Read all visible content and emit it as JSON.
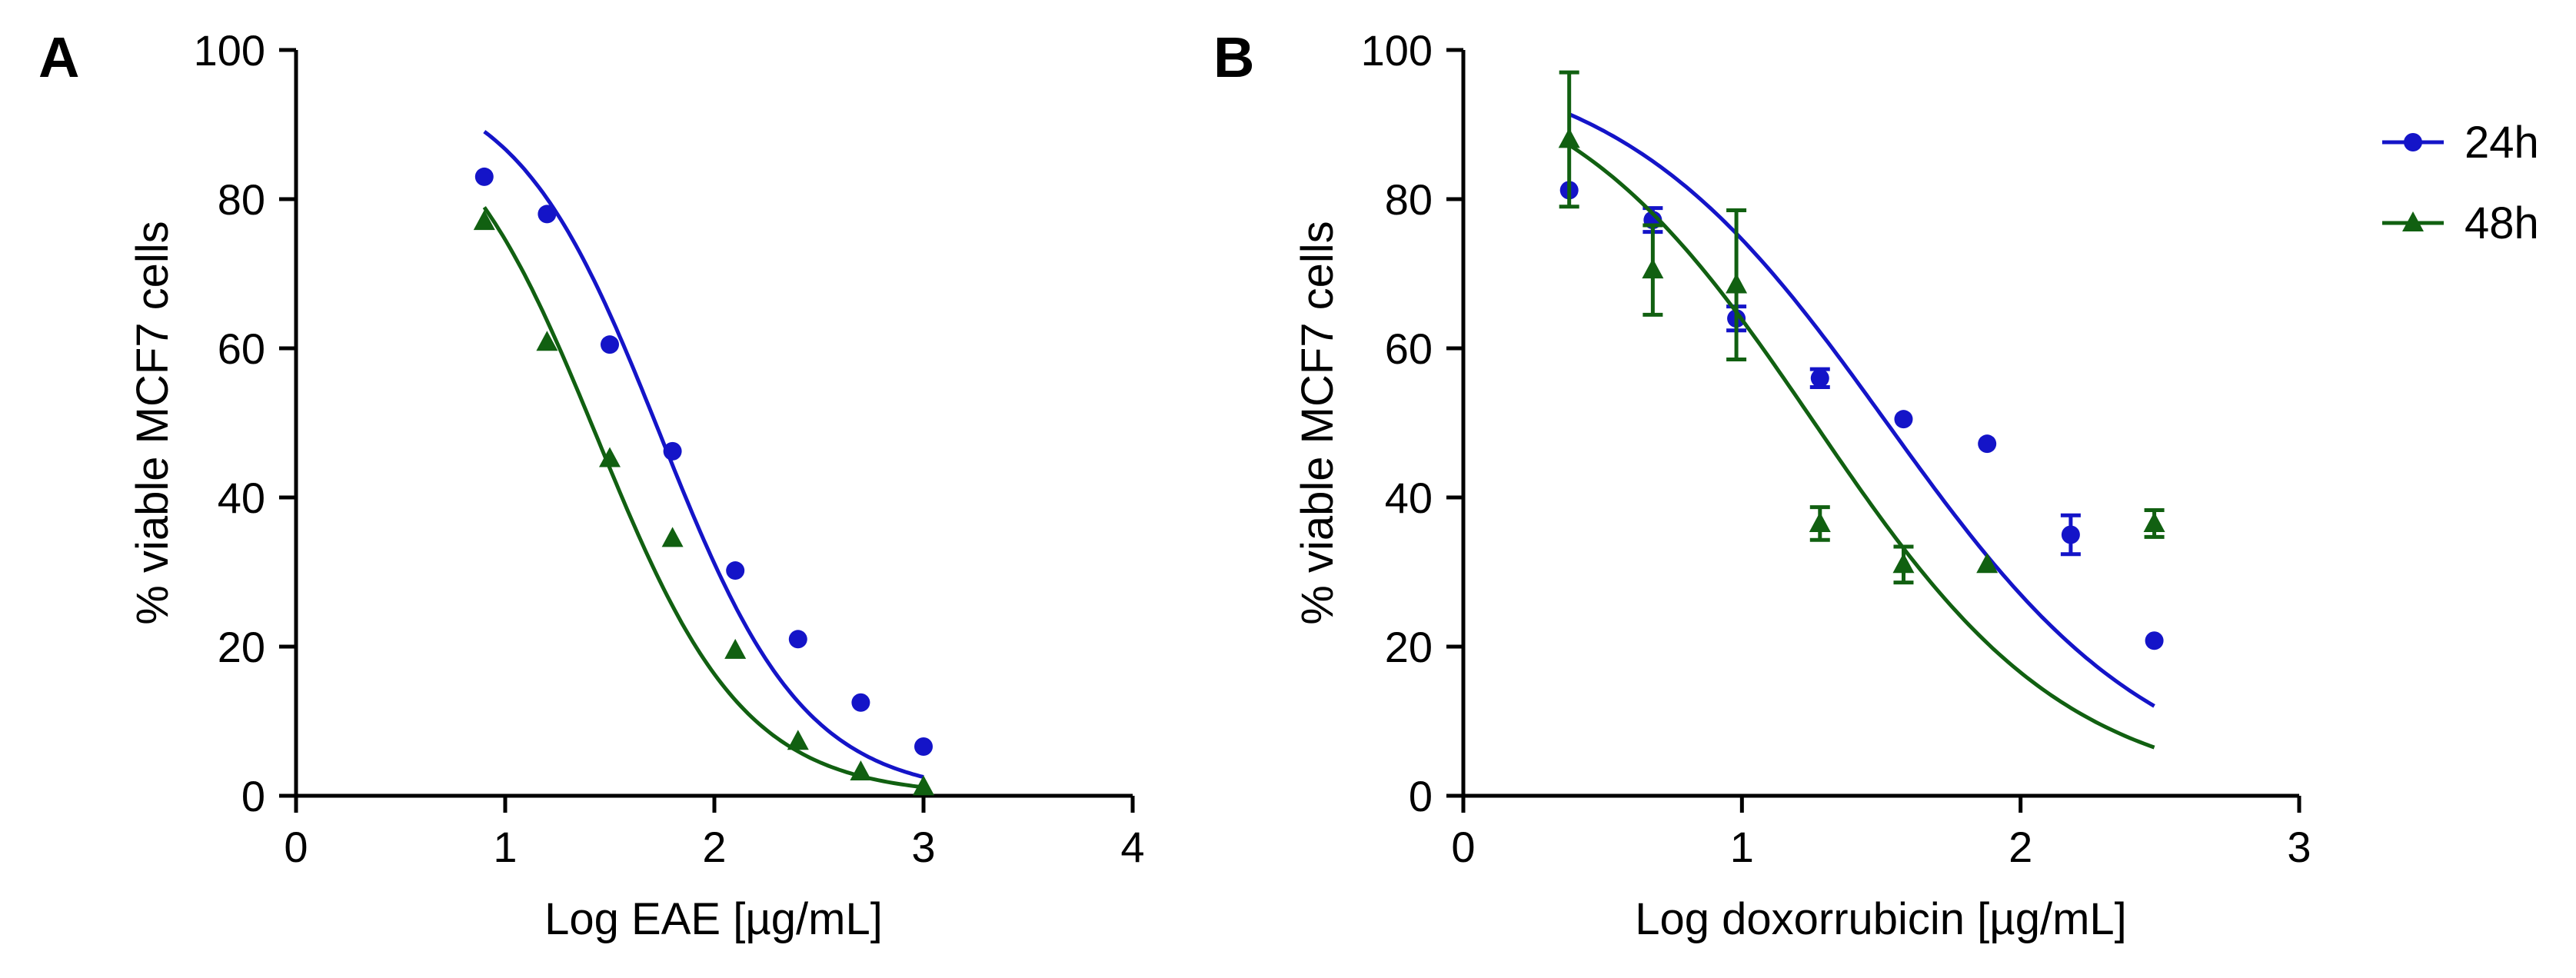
{
  "panels": [
    {
      "letter": "A"
    },
    {
      "letter": "B"
    }
  ],
  "legend": [
    {
      "name": "24h",
      "color": "#1414c8",
      "marker": "circle"
    },
    {
      "name": "48h",
      "color": "#116011",
      "marker": "triangle"
    }
  ],
  "chart_data": [
    {
      "type": "scatter",
      "panel": "A",
      "xlabel": "Log EAE [µg/mL]",
      "ylabel": "% viable MCF7 cells",
      "xlim": [
        0,
        4
      ],
      "ylim": [
        0,
        100
      ],
      "xticks": [
        0,
        1,
        2,
        3,
        4
      ],
      "yticks": [
        0,
        20,
        40,
        60,
        80,
        100
      ],
      "grid": false,
      "series": [
        {
          "name": "24h",
          "color": "#1414c8",
          "marker": "circle",
          "points": [
            {
              "x": 0.9,
              "y": 83.0
            },
            {
              "x": 1.2,
              "y": 78.0
            },
            {
              "x": 1.5,
              "y": 60.5
            },
            {
              "x": 1.8,
              "y": 46.2
            },
            {
              "x": 2.1,
              "y": 30.2
            },
            {
              "x": 2.4,
              "y": 21.0
            },
            {
              "x": 2.7,
              "y": 12.5
            },
            {
              "x": 3.0,
              "y": 6.6
            }
          ],
          "fit": {
            "top": 97.0,
            "bottom": 0.0,
            "logIC50": 1.74,
            "hill": -1.25,
            "x_range": [
              0.9,
              3.0
            ]
          }
        },
        {
          "name": "48h",
          "color": "#116011",
          "marker": "triangle",
          "points": [
            {
              "x": 0.9,
              "y": 77.0
            },
            {
              "x": 1.2,
              "y": 60.8
            },
            {
              "x": 1.5,
              "y": 45.2
            },
            {
              "x": 1.8,
              "y": 34.5
            },
            {
              "x": 2.1,
              "y": 19.5
            },
            {
              "x": 2.4,
              "y": 7.3
            },
            {
              "x": 2.7,
              "y": 3.2
            },
            {
              "x": 3.0,
              "y": 1.2
            }
          ],
          "fit": {
            "top": 96.0,
            "bottom": 0.0,
            "logIC50": 1.44,
            "hill": -1.23,
            "x_range": [
              0.9,
              3.0
            ]
          }
        }
      ]
    },
    {
      "type": "scatter",
      "panel": "B",
      "xlabel": "Log doxorrubicin [µg/mL]",
      "ylabel": "% viable MCF7 cells",
      "xlim": [
        0,
        3
      ],
      "ylim": [
        0,
        100
      ],
      "xticks": [
        0,
        1,
        2,
        3
      ],
      "yticks": [
        0,
        20,
        40,
        60,
        80,
        100
      ],
      "grid": false,
      "series": [
        {
          "name": "24h",
          "color": "#1414c8",
          "marker": "circle",
          "points": [
            {
              "x": 0.38,
              "y": 81.2,
              "err": 0
            },
            {
              "x": 0.68,
              "y": 77.2,
              "err": 1.6
            },
            {
              "x": 0.98,
              "y": 64.0,
              "err": 1.6
            },
            {
              "x": 1.28,
              "y": 56.0,
              "err": 1.2
            },
            {
              "x": 1.58,
              "y": 50.5,
              "err": 0
            },
            {
              "x": 1.88,
              "y": 47.2,
              "err": 0
            },
            {
              "x": 2.18,
              "y": 35.0,
              "err": 2.6
            },
            {
              "x": 2.48,
              "y": 20.8,
              "err": 0
            }
          ],
          "fit": {
            "top": 100.0,
            "bottom": 0.0,
            "logIC50": 1.52,
            "hill": -0.9,
            "x_range": [
              0.38,
              2.48
            ]
          }
        },
        {
          "name": "48h",
          "color": "#116011",
          "marker": "triangle",
          "points": [
            {
              "x": 0.38,
              "y": 88.0,
              "err": 9.0
            },
            {
              "x": 0.68,
              "y": 70.5,
              "err": 6.0
            },
            {
              "x": 0.98,
              "y": 68.5,
              "err": 10.0
            },
            {
              "x": 1.28,
              "y": 36.5,
              "err": 2.2
            },
            {
              "x": 1.58,
              "y": 31.0,
              "err": 2.4
            },
            {
              "x": 1.88,
              "y": 31.0,
              "err": 0
            },
            {
              "x": 2.48,
              "y": 36.5,
              "err": 1.8
            }
          ],
          "fit": {
            "top": 100.0,
            "bottom": 0.0,
            "logIC50": 1.26,
            "hill": -0.95,
            "x_range": [
              0.38,
              2.48
            ]
          }
        }
      ]
    }
  ]
}
